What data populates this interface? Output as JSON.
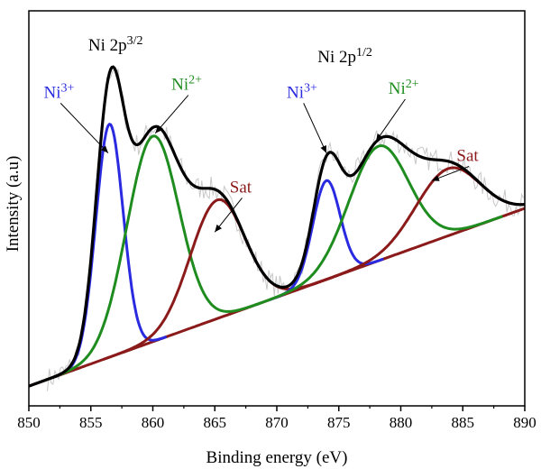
{
  "chart_data": {
    "type": "line",
    "title": "",
    "xlabel": "Binding energy (eV)",
    "ylabel": "Intensity (a.u)",
    "xlim": [
      850,
      890
    ],
    "ylim": [
      0,
      1
    ],
    "xticks": [
      850,
      855,
      860,
      865,
      870,
      875,
      880,
      885,
      890
    ],
    "grid": false,
    "legend": "none",
    "region_labels": [
      {
        "base": "Ni 2p",
        "sup": "3/2",
        "x": 857.0,
        "y": 0.9
      },
      {
        "base": "Ni 2p",
        "sup": "1/2",
        "x": 875.5,
        "y": 0.87
      }
    ],
    "baseline": {
      "color": "#8b1a1a",
      "x": [
        850,
        890
      ],
      "y": [
        0.05,
        0.5
      ]
    },
    "peaks": [
      {
        "label": "Ni",
        "sup": "3+",
        "color": "#2a2ae0",
        "center": 856.5,
        "height": 0.59,
        "sigma": 1.1
      },
      {
        "label": "Ni",
        "sup": "2+",
        "color": "#1e8c1e",
        "center": 860.0,
        "height": 0.52,
        "sigma": 2.1
      },
      {
        "label": "Sat",
        "sup": "",
        "color": "#8b1a1a",
        "center": 865.2,
        "height": 0.3,
        "sigma": 2.2
      },
      {
        "label": "Ni",
        "sup": "3+",
        "color": "#2a2ae0",
        "center": 874.0,
        "height": 0.25,
        "sigma": 1.1
      },
      {
        "label": "Ni",
        "sup": "2+",
        "color": "#1e8c1e",
        "center": 878.2,
        "height": 0.29,
        "sigma": 2.4
      },
      {
        "label": "Sat",
        "sup": "",
        "color": "#8b1a1a",
        "center": 883.8,
        "height": 0.17,
        "sigma": 2.6
      }
    ],
    "envelope": {
      "color": "#000000"
    },
    "raw_data": {
      "color": "#c8c8c8"
    },
    "annotations": [
      {
        "text": "Ni",
        "sup": "3+",
        "color": "#2a2ae0",
        "text_x": 851.2,
        "text_y": 0.78,
        "arrow_to": [
          856.4,
          0.64
        ]
      },
      {
        "text": "Ni",
        "sup": "2+",
        "color": "#1e8c1e",
        "text_x": 861.5,
        "text_y": 0.8,
        "arrow_to": [
          860.2,
          0.69
        ]
      },
      {
        "text": "Sat",
        "sup": "",
        "color": "#8b1a1a",
        "text_x": 866.2,
        "text_y": 0.54,
        "arrow_to": [
          865.0,
          0.44
        ]
      },
      {
        "text": "Ni",
        "sup": "3+",
        "color": "#2a2ae0",
        "text_x": 870.8,
        "text_y": 0.78,
        "arrow_to": [
          874.0,
          0.64
        ]
      },
      {
        "text": "Ni",
        "sup": "2+",
        "color": "#1e8c1e",
        "text_x": 879.0,
        "text_y": 0.79,
        "arrow_to": [
          878.0,
          0.67
        ]
      },
      {
        "text": "Sat",
        "sup": "",
        "color": "#8b1a1a",
        "text_x": 884.5,
        "text_y": 0.62,
        "arrow_to": [
          882.5,
          0.57
        ]
      }
    ]
  }
}
